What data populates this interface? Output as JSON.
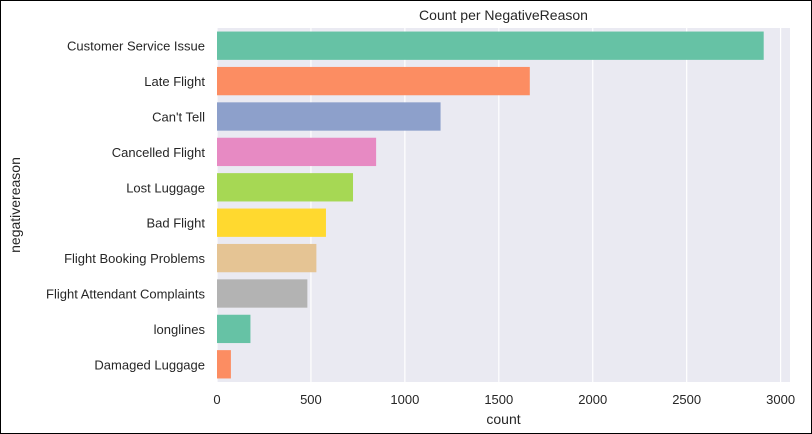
{
  "chart_data": {
    "type": "bar",
    "orientation": "horizontal",
    "title": "Count per NegativeReason",
    "xlabel": "count",
    "ylabel": "negativereason",
    "xlim": [
      0,
      3050
    ],
    "xticks": [
      0,
      500,
      1000,
      1500,
      2000,
      2500,
      3000
    ],
    "grid": true,
    "categories": [
      "Customer Service Issue",
      "Late Flight",
      "Can't Tell",
      "Cancelled Flight",
      "Lost Luggage",
      "Bad Flight",
      "Flight Booking Problems",
      "Flight Attendant Complaints",
      "longlines",
      "Damaged Luggage"
    ],
    "values": [
      2910,
      1665,
      1190,
      847,
      724,
      580,
      529,
      481,
      178,
      74
    ],
    "colors": [
      "#66c2a5",
      "#fc8d62",
      "#8da0cb",
      "#e78ac3",
      "#a6d854",
      "#ffd92f",
      "#e5c494",
      "#b3b3b3",
      "#66c2a5",
      "#fc8d62"
    ],
    "background_color": "#eaeaf2",
    "grid_color": "#ffffff"
  }
}
